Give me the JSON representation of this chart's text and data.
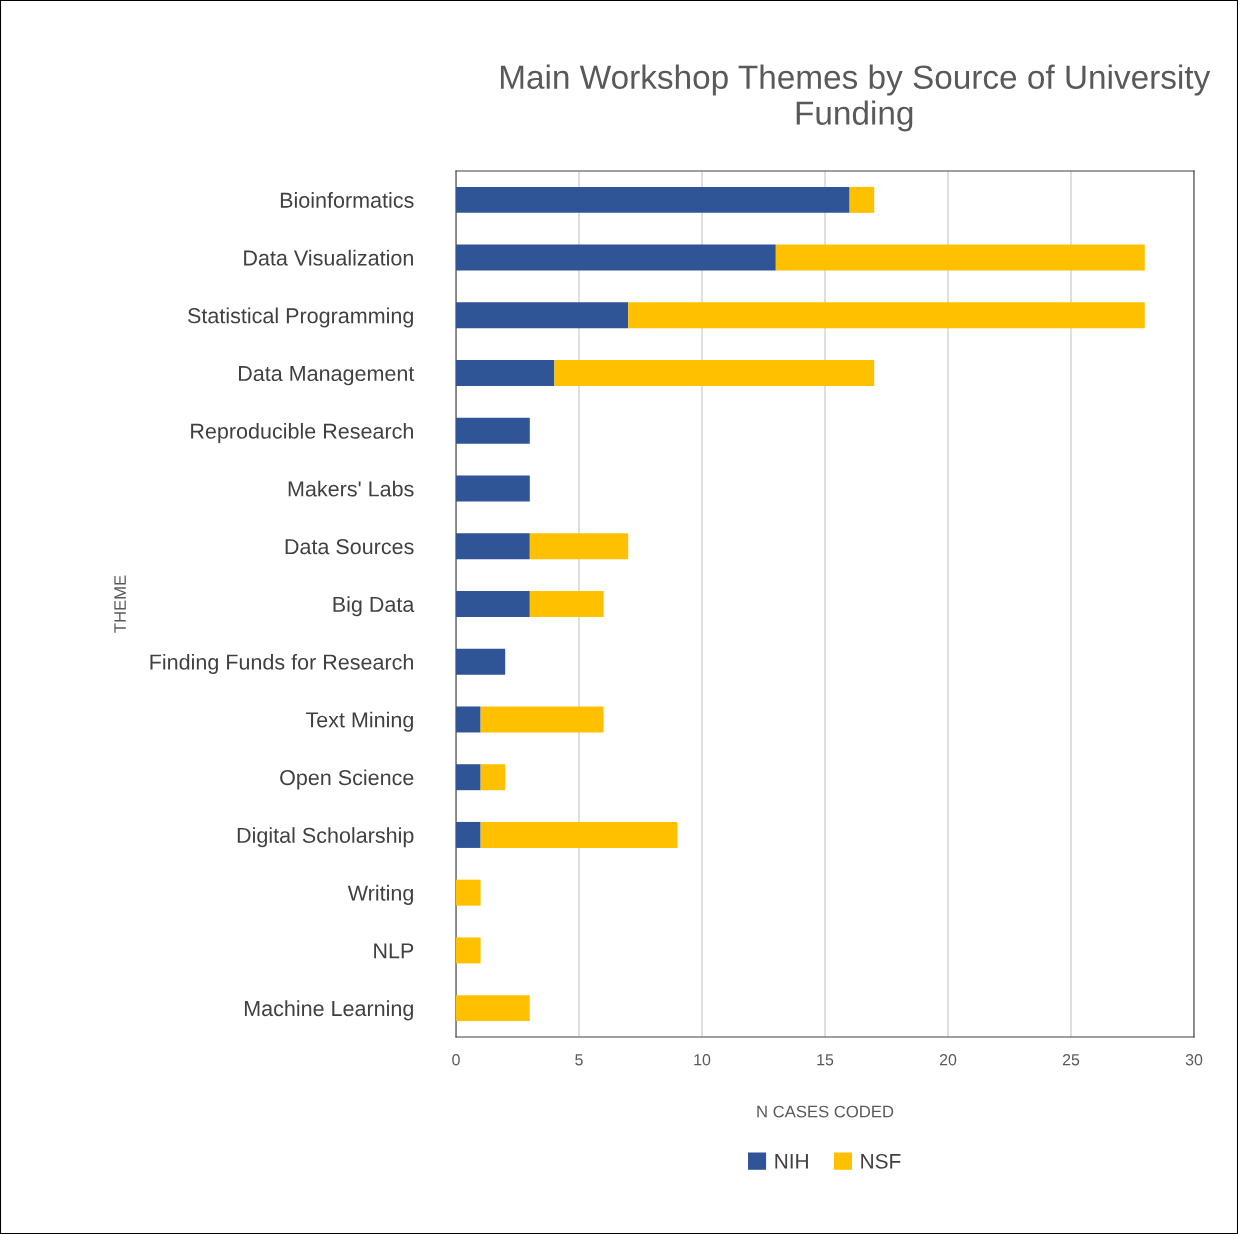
{
  "chart_data": {
    "type": "bar",
    "orientation": "horizontal",
    "stacked": true,
    "title": "Main Workshop Themes by Source of University Funding",
    "xlabel": "N CASES CODED",
    "ylabel": "THEME",
    "categories": [
      "Bioinformatics",
      "Data Visualization",
      "Statistical Programming",
      "Data Management",
      "Reproducible Research",
      "Makers' Labs",
      "Data Sources",
      "Big Data",
      "Finding Funds for Research",
      "Text Mining",
      "Open Science",
      "Digital Scholarship",
      "Writing",
      "NLP",
      "Machine Learning"
    ],
    "series": [
      {
        "name": "NIH",
        "color": "#2f5597",
        "values": [
          16,
          13,
          7,
          4,
          3,
          3,
          3,
          3,
          2,
          1,
          1,
          1,
          0,
          0,
          0
        ]
      },
      {
        "name": "NSF",
        "color": "#ffc000",
        "values": [
          1,
          15,
          21,
          13,
          0,
          0,
          4,
          3,
          0,
          5,
          1,
          8,
          1,
          1,
          3
        ]
      }
    ],
    "xlim": [
      0,
      30
    ],
    "xticks": [
      0,
      5,
      10,
      15,
      20,
      25,
      30
    ],
    "grid": "x",
    "legend": "bottom"
  }
}
